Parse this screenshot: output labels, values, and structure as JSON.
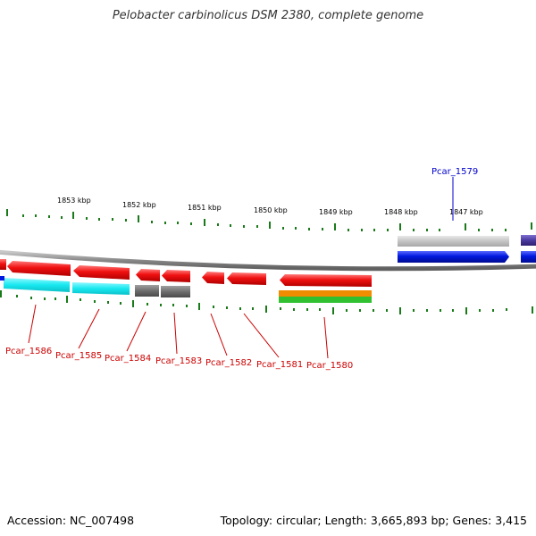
{
  "title": "Pelobacter carbinolicus DSM 2380, complete genome",
  "footer": {
    "accession": "Accession: NC_007498",
    "summary": "Topology: circular; Length: 3,665,893 bp; Genes: 3,415"
  },
  "scale": {
    "unit": "kbp",
    "labels": [
      "1853 kbp",
      "1852 kbp",
      "1851 kbp",
      "1850 kbp",
      "1849 kbp",
      "1848 kbp",
      "1847 kbp"
    ]
  },
  "colors": {
    "backbone": "#888888",
    "tick": "#1a7a1a",
    "forward_gene": "#0018e0",
    "reverse_gene": "#e00000",
    "cds_grey": "#6e6e6e",
    "cds_cyan": "#18e8f0",
    "cds_orange": "#f08c00",
    "cds_green": "#30c030",
    "cds_purple": "#4a3aa0",
    "label_forward": "#0000cc",
    "label_reverse": "#cc0000"
  },
  "genes": [
    {
      "id": "Pcar_1586",
      "strand": "-"
    },
    {
      "id": "Pcar_1585",
      "strand": "-"
    },
    {
      "id": "Pcar_1584",
      "strand": "-"
    },
    {
      "id": "Pcar_1583",
      "strand": "-"
    },
    {
      "id": "Pcar_1582",
      "strand": "-"
    },
    {
      "id": "Pcar_1581",
      "strand": "-"
    },
    {
      "id": "Pcar_1580",
      "strand": "-"
    },
    {
      "id": "Pcar_1579",
      "strand": "+"
    }
  ]
}
